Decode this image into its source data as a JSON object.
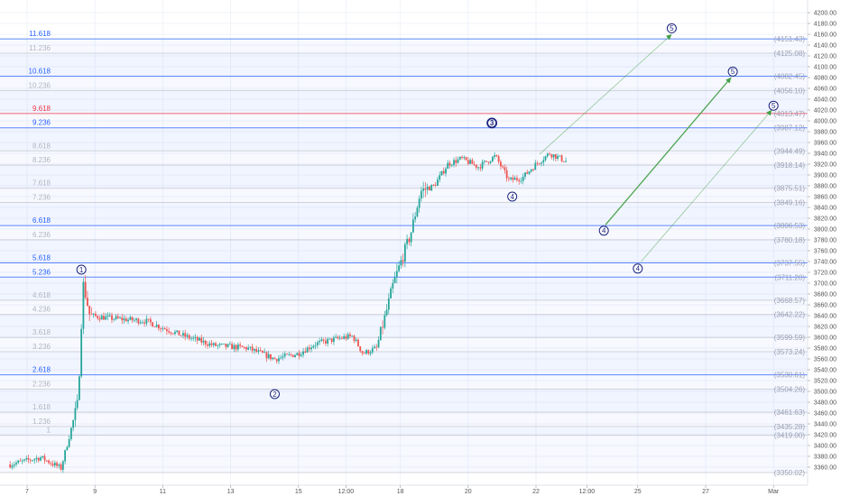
{
  "chart_data": {
    "type": "candlestick",
    "title": "",
    "xlabel": "",
    "ylabel": "",
    "grid": true,
    "ylim": [
      3330,
      4220
    ],
    "colors": {
      "up": "#26a69a",
      "down": "#ef5350",
      "level_blue": "#2962ff",
      "level_red": "#f23645",
      "level_light": "#b2b5be",
      "wave": "#1a237e",
      "projection": "#43a047"
    },
    "price_ticks": [
      "4200.00",
      "4180.00",
      "4160.00",
      "4140.00",
      "4120.00",
      "4100.00",
      "4080.00",
      "4060.00",
      "4040.00",
      "4020.00",
      "4000.00",
      "3980.00",
      "3960.00",
      "3940.00",
      "3920.00",
      "3900.00",
      "3880.00",
      "3860.00",
      "3840.00",
      "3820.00",
      "3800.00",
      "3780.00",
      "3760.00",
      "3740.00",
      "3720.00",
      "3700.00",
      "3680.00",
      "3660.00",
      "3640.00",
      "3620.00",
      "3600.00",
      "3580.00",
      "3560.00",
      "3540.00",
      "3520.00",
      "3500.00",
      "3480.00",
      "3460.00",
      "3440.00",
      "3420.00",
      "3400.00",
      "3380.00",
      "3360.00"
    ],
    "time_ticks": [
      "7",
      "9",
      "11",
      "13",
      "15",
      "12:00",
      "18",
      "20",
      "22",
      "12:00",
      "25",
      "27",
      "Mar"
    ],
    "fib_levels": [
      {
        "ratio": "11.618",
        "price": "(4151.43)",
        "value": 4151.43,
        "style": "blue"
      },
      {
        "ratio": "11.236",
        "price": "(4125.08)",
        "value": 4125.08,
        "style": "light"
      },
      {
        "ratio": "10.618",
        "price": "(4082.45)",
        "value": 4082.45,
        "style": "blue"
      },
      {
        "ratio": "10.236",
        "price": "(4056.10)",
        "value": 4056.1,
        "style": "light"
      },
      {
        "ratio": "9.618",
        "price": "(4013.47)",
        "value": 4013.47,
        "style": "red"
      },
      {
        "ratio": "9.236",
        "price": "(3987.12)",
        "value": 3987.12,
        "style": "blue"
      },
      {
        "ratio": "8.618",
        "price": "(3944.49)",
        "value": 3944.49,
        "style": "light"
      },
      {
        "ratio": "8.236",
        "price": "(3918.14)",
        "value": 3918.14,
        "style": "light"
      },
      {
        "ratio": "7.618",
        "price": "(3875.51)",
        "value": 3875.51,
        "style": "light"
      },
      {
        "ratio": "7.236",
        "price": "(3849.16)",
        "value": 3849.16,
        "style": "light"
      },
      {
        "ratio": "6.618",
        "price": "(3806.53)",
        "value": 3806.53,
        "style": "blue"
      },
      {
        "ratio": "6.236",
        "price": "(3780.18)",
        "value": 3780.18,
        "style": "light"
      },
      {
        "ratio": "5.618",
        "price": "(3737.55)",
        "value": 3737.55,
        "style": "blue"
      },
      {
        "ratio": "5.236",
        "price": "(3711.20)",
        "value": 3711.2,
        "style": "blue"
      },
      {
        "ratio": "4.618",
        "price": "(3668.57)",
        "value": 3668.57,
        "style": "light"
      },
      {
        "ratio": "4.236",
        "price": "(3642.22)",
        "value": 3642.22,
        "style": "light"
      },
      {
        "ratio": "3.618",
        "price": "(3599.59)",
        "value": 3599.59,
        "style": "light"
      },
      {
        "ratio": "3.236",
        "price": "(3573.24)",
        "value": 3573.24,
        "style": "light"
      },
      {
        "ratio": "2.618",
        "price": "(3530.61)",
        "value": 3530.61,
        "style": "blue"
      },
      {
        "ratio": "2.236",
        "price": "(3504.26)",
        "value": 3504.26,
        "style": "light"
      },
      {
        "ratio": "1.618",
        "price": "(3461.63)",
        "value": 3461.63,
        "style": "light"
      },
      {
        "ratio": "1.236",
        "price": "(3435.28)",
        "value": 3435.28,
        "style": "light"
      },
      {
        "ratio": "1",
        "price": "(3419.00)",
        "value": 3419.0,
        "style": "light"
      },
      {
        "ratio": "",
        "price": "(3350.02)",
        "value": 3350.02,
        "style": "light"
      }
    ],
    "wave_labels": [
      {
        "label": "1",
        "t": 8.6,
        "price": 3725,
        "filled": false
      },
      {
        "label": "2",
        "t": 14.3,
        "price": 3495,
        "filled": false
      },
      {
        "label": "3",
        "t": 20.7,
        "price": 3996,
        "filled": true
      },
      {
        "label": "4",
        "t": 21.3,
        "price": 3860,
        "filled": false
      },
      {
        "label": "4",
        "t": 24.0,
        "price": 3797,
        "filled": false
      },
      {
        "label": "5",
        "t": 26.0,
        "price": 4171,
        "filled": false
      },
      {
        "label": "5",
        "t": 27.8,
        "price": 4091,
        "filled": false
      },
      {
        "label": "4",
        "t": 25.0,
        "price": 3727,
        "filled": false
      },
      {
        "label": "5",
        "t": 29.0,
        "price": 4028,
        "filled": false
      }
    ],
    "projections": [
      {
        "from": [
          22.1,
          3938
        ],
        "to": [
          26.0,
          4160
        ],
        "bold": false
      },
      {
        "from": [
          24.05,
          3808
        ],
        "to": [
          27.75,
          4080
        ],
        "bold": true
      },
      {
        "from": [
          25.1,
          3740
        ],
        "to": [
          28.95,
          4020
        ],
        "bold": false
      }
    ],
    "price_path": [
      {
        "t": 6.5,
        "price": 3365
      },
      {
        "t": 7.4,
        "price": 3378
      },
      {
        "t": 8.0,
        "price": 3358
      },
      {
        "t": 8.5,
        "price": 3480
      },
      {
        "t": 8.65,
        "price": 3700
      },
      {
        "t": 8.85,
        "price": 3640
      },
      {
        "t": 9.5,
        "price": 3635
      },
      {
        "t": 10.5,
        "price": 3630
      },
      {
        "t": 11.5,
        "price": 3605
      },
      {
        "t": 12.5,
        "price": 3585
      },
      {
        "t": 13.5,
        "price": 3580
      },
      {
        "t": 14.3,
        "price": 3560
      },
      {
        "t": 15.0,
        "price": 3570
      },
      {
        "t": 15.5,
        "price": 3588
      },
      {
        "t": 16.2,
        "price": 3598
      },
      {
        "t": 16.6,
        "price": 3602
      },
      {
        "t": 16.9,
        "price": 3570
      },
      {
        "t": 17.3,
        "price": 3580
      },
      {
        "t": 17.6,
        "price": 3650
      },
      {
        "t": 17.8,
        "price": 3700
      },
      {
        "t": 18.3,
        "price": 3790
      },
      {
        "t": 18.6,
        "price": 3870
      },
      {
        "t": 19.0,
        "price": 3880
      },
      {
        "t": 19.4,
        "price": 3920
      },
      {
        "t": 19.8,
        "price": 3930
      },
      {
        "t": 20.3,
        "price": 3915
      },
      {
        "t": 20.8,
        "price": 3935
      },
      {
        "t": 21.2,
        "price": 3890
      },
      {
        "t": 21.6,
        "price": 3895
      },
      {
        "t": 22.0,
        "price": 3920
      },
      {
        "t": 22.4,
        "price": 3940
      },
      {
        "t": 22.9,
        "price": 3925
      }
    ]
  }
}
